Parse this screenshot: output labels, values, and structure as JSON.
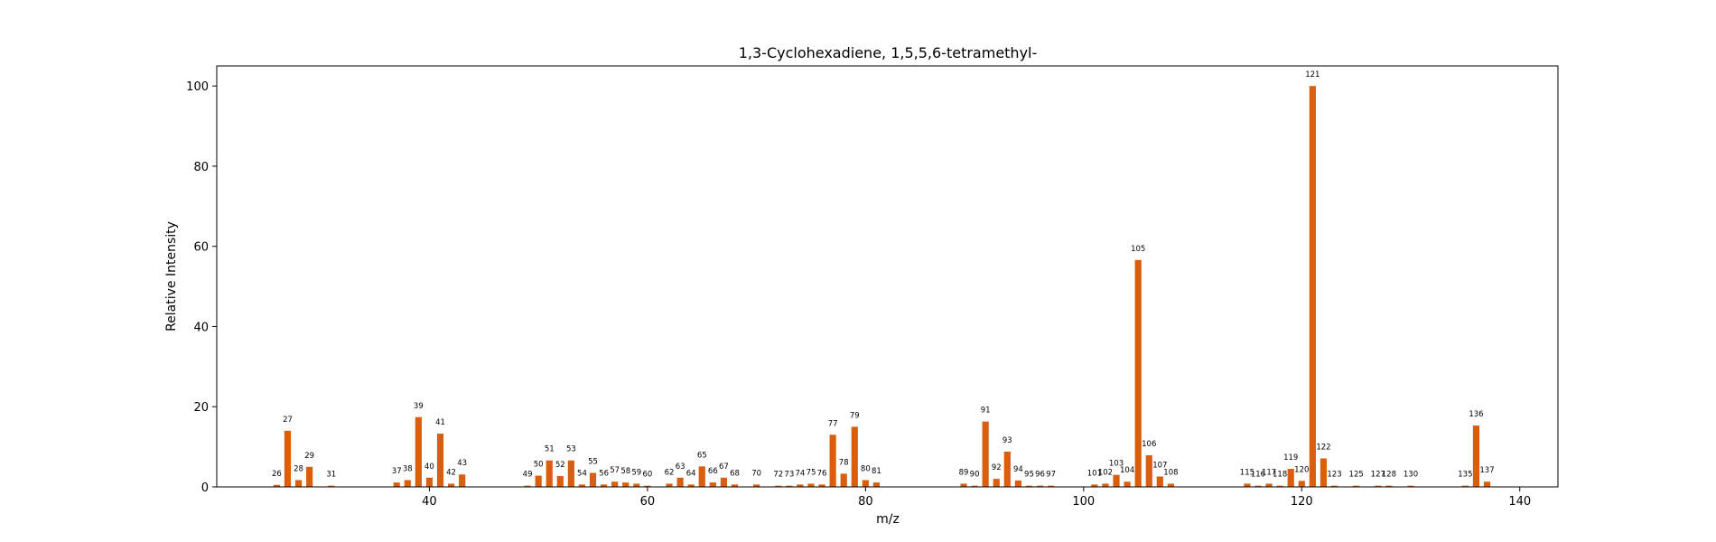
{
  "chart_data": {
    "type": "bar",
    "title": "1,3-Cyclohexadiene, 1,5,5,6-tetramethyl-",
    "xlabel": "m/z",
    "ylabel": "Relative Intensity",
    "xlim": [
      20.5,
      143.5
    ],
    "ylim": [
      0,
      105
    ],
    "xticks": [
      40,
      60,
      80,
      100,
      120,
      140
    ],
    "yticks": [
      0,
      20,
      40,
      60,
      80,
      100
    ],
    "grid": false,
    "color": "#d95f0e",
    "x": [
      26,
      27,
      28,
      29,
      31,
      37,
      38,
      39,
      40,
      41,
      42,
      43,
      49,
      50,
      51,
      52,
      53,
      54,
      55,
      56,
      57,
      58,
      59,
      60,
      62,
      63,
      64,
      65,
      66,
      67,
      68,
      70,
      72,
      73,
      74,
      75,
      76,
      77,
      78,
      79,
      80,
      81,
      89,
      90,
      91,
      92,
      93,
      94,
      95,
      96,
      97,
      101,
      102,
      103,
      104,
      105,
      106,
      107,
      108,
      115,
      116,
      117,
      118,
      119,
      120,
      121,
      122,
      123,
      125,
      127,
      128,
      130,
      135,
      136,
      137
    ],
    "values": [
      0.5,
      14,
      1.7,
      5,
      0.3,
      1.1,
      1.7,
      17.4,
      2.3,
      13.3,
      0.8,
      3.1,
      0.3,
      2.8,
      6.6,
      2.7,
      6.6,
      0.6,
      3.5,
      0.6,
      1.3,
      1.1,
      0.8,
      0.3,
      0.8,
      2.3,
      0.6,
      5.1,
      1.1,
      2.3,
      0.6,
      0.6,
      0.3,
      0.3,
      0.6,
      0.8,
      0.6,
      13,
      3.3,
      15,
      1.7,
      1.1,
      0.8,
      0.3,
      16.3,
      2,
      8.8,
      1.6,
      0.3,
      0.3,
      0.3,
      0.6,
      0.8,
      3,
      1.3,
      56.6,
      7.9,
      2.6,
      0.8,
      0.8,
      0.3,
      0.8,
      0.3,
      4.5,
      1.5,
      100,
      7.1,
      0.3,
      0.3,
      0.3,
      0.3,
      0.3,
      0.3,
      15.3,
      1.3
    ]
  }
}
